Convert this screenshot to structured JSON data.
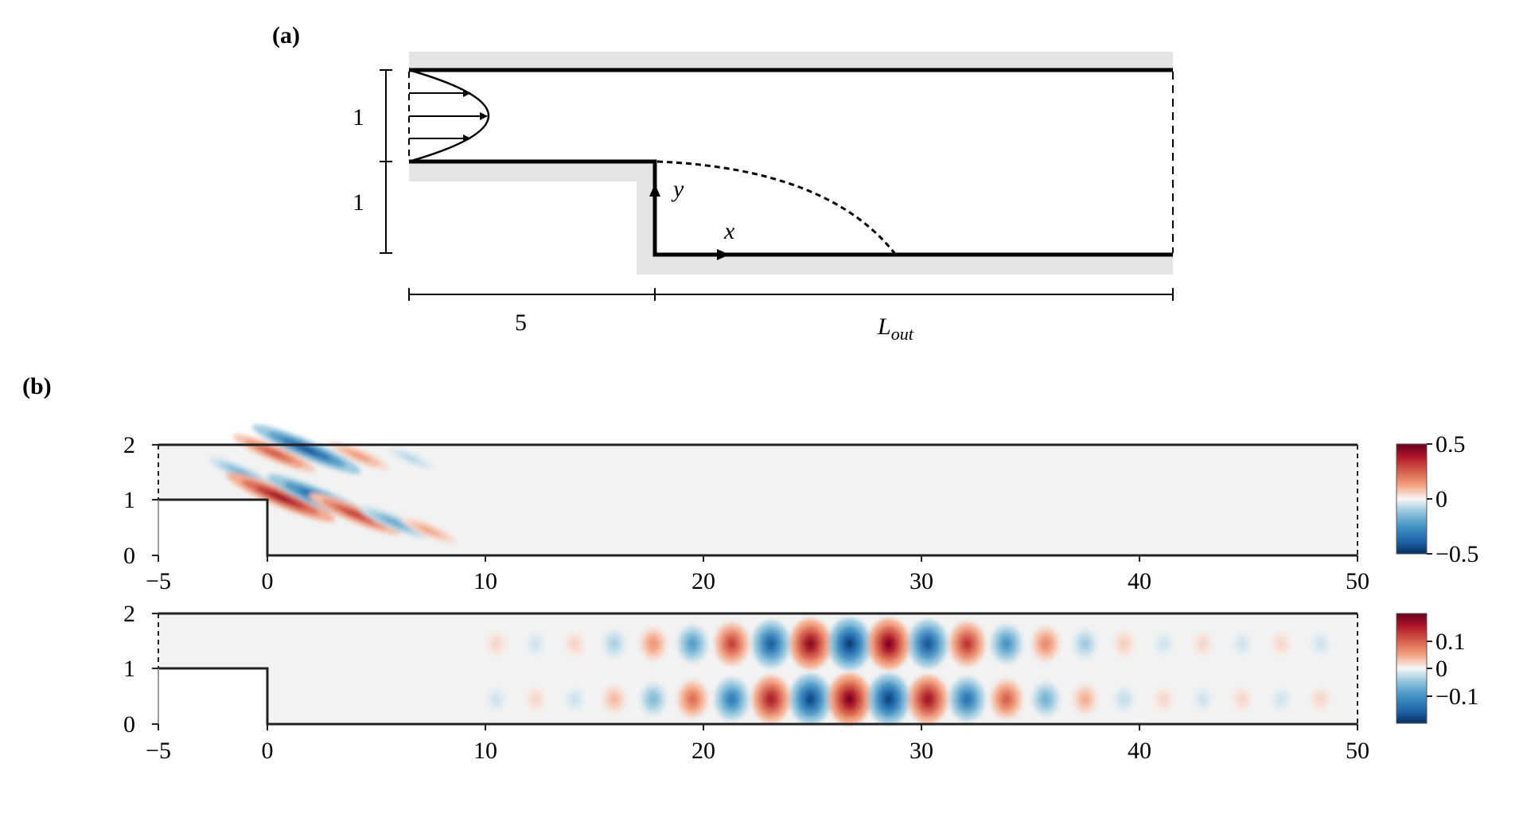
{
  "panel_a": {
    "label": "(a)",
    "inlet_height": "1",
    "step_height": "1",
    "inlet_length": "5",
    "outlet_length_symbol": "L",
    "outlet_length_subscript": "out",
    "axis_x": "x",
    "axis_y": "y"
  },
  "panel_b": {
    "label": "(b)",
    "x_ticks": [
      "−5",
      "0",
      "10",
      "20",
      "30",
      "40",
      "50"
    ],
    "y_ticks": [
      "0",
      "1",
      "2"
    ],
    "colorbar_top": [
      "0.5",
      "0",
      "−0.5"
    ],
    "colorbar_bottom": [
      "0.1",
      "0",
      "−0.1"
    ]
  },
  "chart_data": [
    {
      "type": "heatmap",
      "title": "",
      "xlim": [
        -5,
        50
      ],
      "ylim": [
        0,
        2
      ],
      "x_ticks": [
        -5,
        0,
        10,
        20,
        30,
        40,
        50
      ],
      "y_ticks": [
        0,
        1,
        2
      ],
      "colormap": "RdBu_r",
      "color_range": [
        -0.5,
        0.5
      ],
      "colorbar_ticks": [
        0.5,
        0,
        -0.5
      ],
      "structures": [
        {
          "sign": "neg",
          "x": 1.8,
          "y": 1.92,
          "amp": 0.9
        },
        {
          "sign": "pos",
          "x": 0.3,
          "y": 1.85,
          "amp": 0.6
        },
        {
          "sign": "neg",
          "x": -1.2,
          "y": 1.5,
          "amp": 0.4
        },
        {
          "sign": "pos",
          "x": 0.6,
          "y": 1.05,
          "amp": 0.9
        },
        {
          "sign": "neg",
          "x": 2.6,
          "y": 1.0,
          "amp": 0.95
        },
        {
          "sign": "pos",
          "x": 4.0,
          "y": 0.75,
          "amp": 0.7
        },
        {
          "sign": "neg",
          "x": 5.8,
          "y": 0.6,
          "amp": 0.45
        },
        {
          "sign": "pos",
          "x": 7.4,
          "y": 0.45,
          "amp": 0.3
        },
        {
          "sign": "pos",
          "x": 4.2,
          "y": 1.8,
          "amp": 0.35
        },
        {
          "sign": "neg",
          "x": 6.6,
          "y": 1.75,
          "amp": 0.2
        }
      ]
    },
    {
      "type": "heatmap",
      "title": "",
      "xlim": [
        -5,
        50
      ],
      "ylim": [
        0,
        2
      ],
      "x_ticks": [
        -5,
        0,
        10,
        20,
        30,
        40,
        50
      ],
      "y_ticks": [
        0,
        1,
        2
      ],
      "colormap": "RdBu_r",
      "color_range": [
        -0.14,
        0.14
      ],
      "colorbar_ticks": [
        0.1,
        0,
        -0.1
      ],
      "wave_packet": {
        "start_x": 10.5,
        "end_x": 49,
        "peak_x": 27,
        "wavelength": 3.6,
        "rows_y": [
          1.45,
          0.45
        ],
        "peak_amplitude": 0.14
      }
    }
  ]
}
